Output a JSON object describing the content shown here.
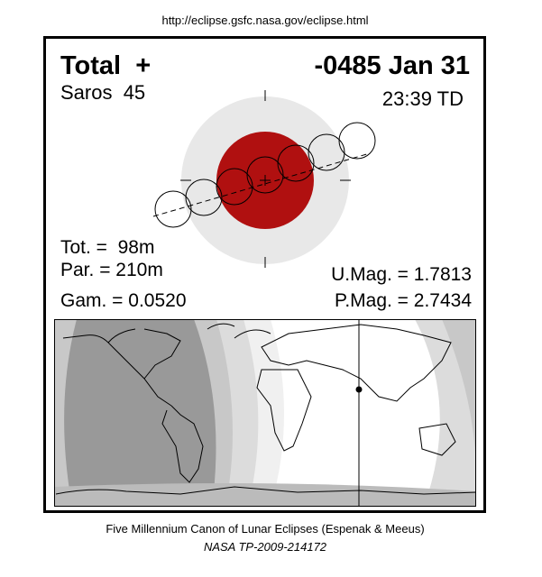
{
  "header": {
    "url": "http://eclipse.gsfc.nasa.gov/eclipse.html"
  },
  "panel": {
    "eclipse_type": "Total  +",
    "date": "-0485 Jan 31",
    "saros": "Saros  45",
    "time": "23:39 TD",
    "tot": "Tot. =  98m",
    "par": "Par. = 210m",
    "gam": "Gam. = 0.0520",
    "umag": "U.Mag. = 1.7813",
    "pmag": "P.Mag. = 2.7434"
  },
  "footer": {
    "line1": "Five Millennium Canon of Lunar Eclipses (Espenak & Meeus)",
    "line2": "NASA TP-2009-214172"
  }
}
